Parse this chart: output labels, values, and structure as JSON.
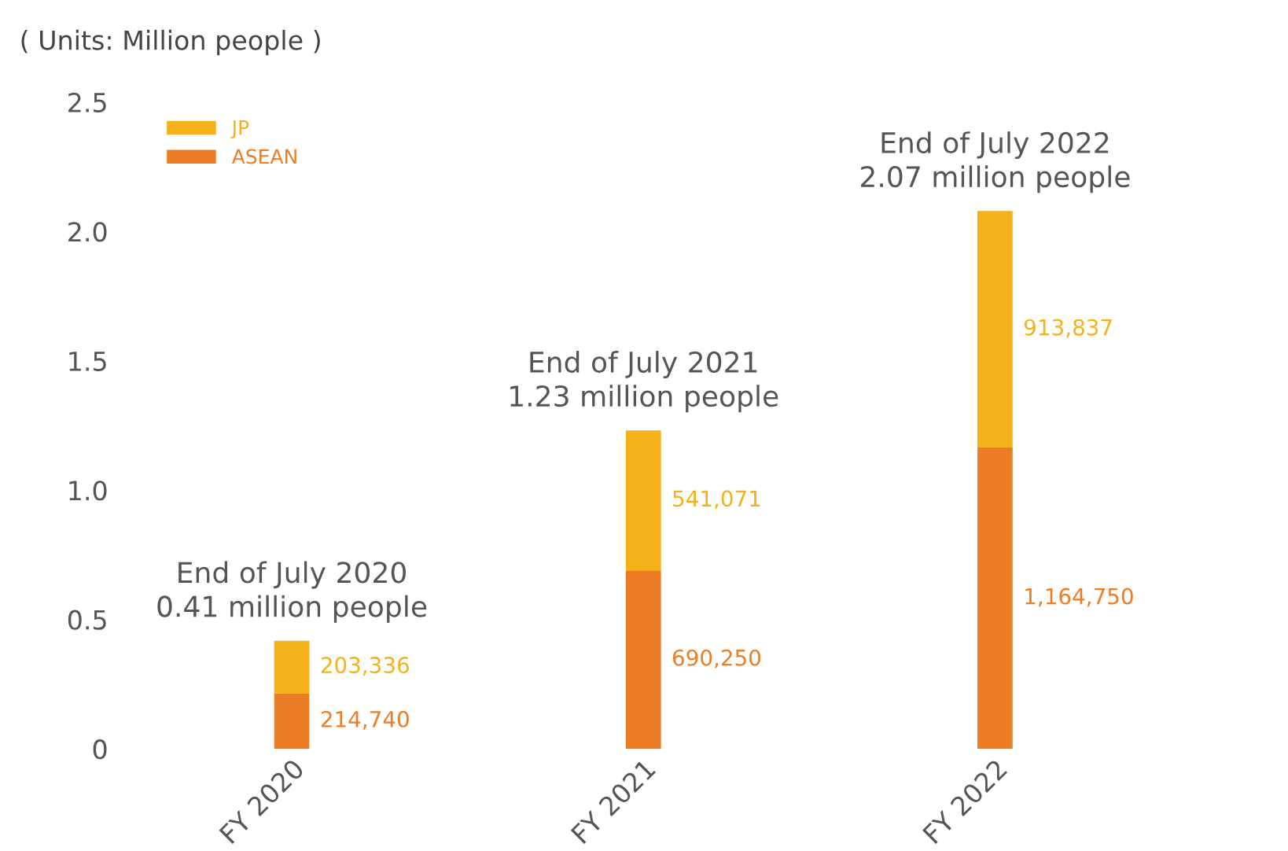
{
  "chart_data": {
    "type": "bar",
    "title": "( Units: Million people )",
    "stacked": true,
    "categories": [
      "FY 2020",
      "FY 2021",
      "FY 2022"
    ],
    "series": [
      {
        "name": "ASEAN",
        "color": "#ed7d24",
        "values": [
          0.215,
          0.69,
          1.165
        ]
      },
      {
        "name": "JP",
        "color": "#f5b11a",
        "values": [
          0.203,
          0.541,
          0.914
        ]
      }
    ],
    "totals": [
      "End of July 2020\n0.41 million people",
      "End of July 2021\n1.23 million people",
      "End of July 2022\n2.07 million people"
    ],
    "annotations": [
      "214,740",
      "203,336",
      "690,250",
      "541,071",
      "1,164,750",
      "913,837"
    ],
    "ylim": [
      0,
      2.5
    ],
    "yticks": [
      0,
      {
        "value": 0.5,
        "label": "0.5"
      },
      {
        "value": 1.0,
        "label": "1.0"
      },
      {
        "value": 1.5,
        "label": "1.5"
      },
      {
        "value": 2.0,
        "label": "2.0"
      },
      {
        "value": 2.5,
        "label": "2.5"
      }
    ],
    "legend": "top left",
    "grid": false
  }
}
